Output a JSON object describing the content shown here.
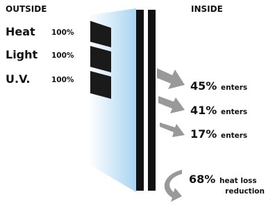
{
  "header": {
    "outside": "OUTSIDE",
    "inside": "INSIDE"
  },
  "incoming": [
    {
      "label": "Heat",
      "amount": "100%"
    },
    {
      "label": "Light",
      "amount": "100%"
    },
    {
      "label": "U.V.",
      "amount": "100%"
    }
  ],
  "transmitted": [
    {
      "amount": "45%",
      "text": "enters"
    },
    {
      "amount": "41%",
      "text": "enters"
    },
    {
      "amount": "17%",
      "text": "enters"
    }
  ],
  "heat_loss": {
    "amount": "68%",
    "text": "heat loss",
    "text2": "reduction"
  }
}
